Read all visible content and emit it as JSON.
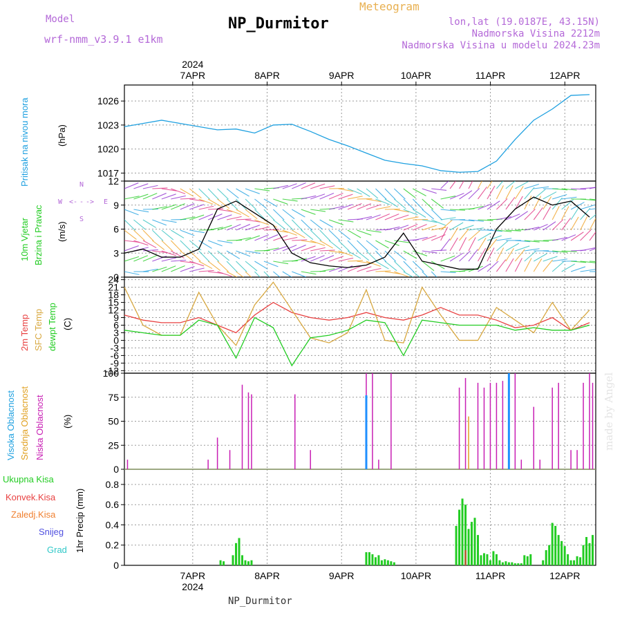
{
  "header": {
    "model_label": "Model",
    "model_name": "wrf-nmm_v3.9.1  e1km",
    "title": "NP_Durmitor",
    "meteogram": "Meteogram",
    "coords": "lon,lat (19.0187E, 43.15N)",
    "elev": "Nadmorska Visina 2212m",
    "elev_model": "Nadmorska Visina u modelu 2024.23m",
    "footer": "NP_Durmitor",
    "credit": "made by Angel",
    "year": "2024"
  },
  "colors": {
    "pressure": "#1ea0e0",
    "t2m": "#e84040",
    "sfc": "#d8a840",
    "dew": "#22cc22",
    "high": "#1e90ff",
    "mid": "#e0a020",
    "low": "#c81eb4",
    "precip": "#22cc22",
    "conv": "#e84040"
  },
  "chart_data": [
    {
      "type": "line",
      "ylabel": "(hPa)",
      "side_labels": [
        "Pritisak na nivou mora"
      ],
      "yticks": [
        1017,
        1020,
        1023,
        1026
      ],
      "ylim": [
        1016,
        1028
      ],
      "x_days": [
        "7APR",
        "8APR",
        "9APR",
        "10APR",
        "11APR",
        "12APR"
      ],
      "series": [
        {
          "name": "Pritisak na nivou mora",
          "x_hours": [
            0,
            6,
            12,
            18,
            24,
            30,
            36,
            42,
            48,
            54,
            60,
            66,
            72,
            78,
            84,
            90,
            96,
            102,
            108,
            114,
            120,
            126,
            132,
            138,
            144,
            150
          ],
          "values": [
            1022.8,
            1023.2,
            1023.6,
            1023.2,
            1022.8,
            1022.4,
            1022.5,
            1022.0,
            1023.0,
            1023.1,
            1022.2,
            1021.2,
            1020.4,
            1019.5,
            1018.6,
            1018.2,
            1017.9,
            1017.3,
            1017.1,
            1017.2,
            1018.5,
            1021.2,
            1023.6,
            1025.0,
            1026.7,
            1026.8
          ]
        }
      ]
    },
    {
      "type": "line",
      "ylabel": "(m/s)",
      "side_labels": [
        "10m Vjetar",
        "Brzina i Pravac"
      ],
      "compass": [
        "W",
        "<-",
        "-",
        "->",
        "E",
        "N",
        "S"
      ],
      "yticks": [
        0,
        3,
        6,
        9,
        12
      ],
      "ylim": [
        0,
        12
      ],
      "series": [
        {
          "name": "Brzina",
          "x_hours": [
            0,
            6,
            12,
            18,
            24,
            30,
            36,
            42,
            48,
            54,
            60,
            66,
            72,
            78,
            84,
            90,
            96,
            102,
            108,
            114,
            120,
            126,
            132,
            138,
            144,
            150
          ],
          "values": [
            3.0,
            3.5,
            2.5,
            2.5,
            3.5,
            8.5,
            9.5,
            8.0,
            6.5,
            3.0,
            1.8,
            1.4,
            1.2,
            1.5,
            2.5,
            5.5,
            2.0,
            1.5,
            1.0,
            1.0,
            6.0,
            8.5,
            10.0,
            9.0,
            9.5,
            7.5
          ]
        }
      ]
    },
    {
      "type": "line",
      "ylabel": "(C)",
      "side_labels": [
        "2m Temp",
        "SFC Temp",
        "dewpt Temp"
      ],
      "yticks": [
        -12,
        -9,
        -6,
        -3,
        0,
        3,
        6,
        9,
        12,
        15,
        18,
        21,
        24
      ],
      "ylim": [
        -13,
        25
      ],
      "series": [
        {
          "name": "2m Temp",
          "x_hours": [
            0,
            6,
            12,
            18,
            24,
            30,
            36,
            42,
            48,
            54,
            60,
            66,
            72,
            78,
            84,
            90,
            96,
            102,
            108,
            114,
            120,
            126,
            132,
            138,
            144,
            150
          ],
          "values": [
            10,
            8,
            7,
            7,
            9,
            6,
            3,
            10,
            15,
            11,
            9,
            8,
            9,
            11,
            9,
            8,
            10,
            13,
            10,
            10,
            8,
            5,
            6,
            9,
            4,
            7
          ]
        },
        {
          "name": "SFC Temp",
          "x_hours": [
            0,
            6,
            12,
            18,
            24,
            30,
            36,
            42,
            48,
            54,
            60,
            66,
            72,
            78,
            84,
            90,
            96,
            102,
            108,
            114,
            120,
            126,
            132,
            138,
            144,
            150
          ],
          "values": [
            21,
            6,
            2,
            2,
            19,
            6,
            -2,
            14,
            23,
            12,
            1,
            -1,
            3,
            20,
            0,
            -1,
            21,
            10,
            0,
            0,
            13,
            8,
            3,
            15,
            4,
            12
          ]
        },
        {
          "name": "dewpt Temp",
          "x_hours": [
            0,
            6,
            12,
            18,
            24,
            30,
            36,
            42,
            48,
            54,
            60,
            66,
            72,
            78,
            84,
            90,
            96,
            102,
            108,
            114,
            120,
            126,
            132,
            138,
            144,
            150
          ],
          "values": [
            4,
            3,
            2,
            2,
            8,
            6,
            -7,
            9,
            5,
            -10,
            1,
            2,
            4,
            8,
            7,
            -6,
            8,
            7,
            6,
            6,
            6,
            4,
            5,
            4,
            4,
            6
          ]
        }
      ]
    },
    {
      "type": "bar",
      "ylabel": "(%)",
      "side_labels": [
        "Visoka Oblacnost",
        "Srednja Oblacnost",
        "Niska Oblacnost"
      ],
      "yticks": [
        0,
        25,
        50,
        75,
        100
      ],
      "ylim": [
        0,
        100
      ],
      "series": [
        {
          "name": "Niska Oblacnost",
          "x_hours": [
            1,
            27,
            30,
            34,
            38,
            40,
            41,
            55,
            60,
            78,
            80,
            82,
            86,
            108,
            110,
            114,
            116,
            118,
            120,
            122,
            124,
            126,
            128,
            132,
            134,
            138,
            140,
            144,
            146,
            148,
            150,
            151
          ],
          "values": [
            10,
            10,
            33,
            20,
            88,
            80,
            78,
            78,
            20,
            100,
            100,
            10,
            100,
            85,
            95,
            90,
            85,
            90,
            90,
            92,
            100,
            100,
            10,
            65,
            10,
            85,
            90,
            20,
            20,
            90,
            100,
            90
          ]
        },
        {
          "name": "Srednja Oblacnost",
          "x_hours": [
            111
          ],
          "values": [
            55
          ]
        },
        {
          "name": "Visoka Oblacnost",
          "x_hours": [
            78,
            124
          ],
          "values": [
            77,
            100
          ]
        }
      ]
    },
    {
      "type": "bar",
      "ylabel": "1hr Precip (mm)",
      "side_labels": [
        "Ukupna Kisa",
        "Konvek.Kisa",
        "Zaledj.Kisa",
        "Snijeg",
        "Grad"
      ],
      "yticks": [
        0,
        0.2,
        0.4,
        0.6,
        0.8
      ],
      "ylim": [
        0,
        0.95
      ],
      "series": [
        {
          "name": "Ukupna Kisa",
          "x_hours": [
            31,
            32,
            35,
            36,
            37,
            38,
            39,
            40,
            41,
            78,
            79,
            80,
            81,
            82,
            83,
            84,
            85,
            86,
            87,
            107,
            108,
            109,
            110,
            111,
            112,
            113,
            114,
            115,
            116,
            117,
            118,
            119,
            120,
            121,
            122,
            123,
            124,
            125,
            126,
            127,
            128,
            129,
            130,
            131,
            135,
            136,
            137,
            138,
            139,
            140,
            141,
            142,
            143,
            144,
            145,
            146,
            147,
            148,
            149,
            150,
            151
          ],
          "values": [
            0.05,
            0.04,
            0.1,
            0.22,
            0.27,
            0.1,
            0.05,
            0.04,
            0.05,
            0.13,
            0.13,
            0.11,
            0.08,
            0.1,
            0.05,
            0.06,
            0.05,
            0.04,
            0.03,
            0.39,
            0.55,
            0.66,
            0.6,
            0.36,
            0.43,
            0.47,
            0.3,
            0.1,
            0.12,
            0.11,
            0.05,
            0.14,
            0.11,
            0.05,
            0.03,
            0.04,
            0.03,
            0.03,
            0.02,
            0.02,
            0.02,
            0.1,
            0.09,
            0.11,
            0.05,
            0.15,
            0.2,
            0.42,
            0.39,
            0.3,
            0.24,
            0.19,
            0.11,
            0.05,
            0.05,
            0.09,
            0.08,
            0.2,
            0.28,
            0.22,
            0.3
          ]
        },
        {
          "name": "Konvek.Kisa",
          "x_hours": [
            110
          ],
          "values": [
            0.15
          ]
        }
      ]
    }
  ]
}
